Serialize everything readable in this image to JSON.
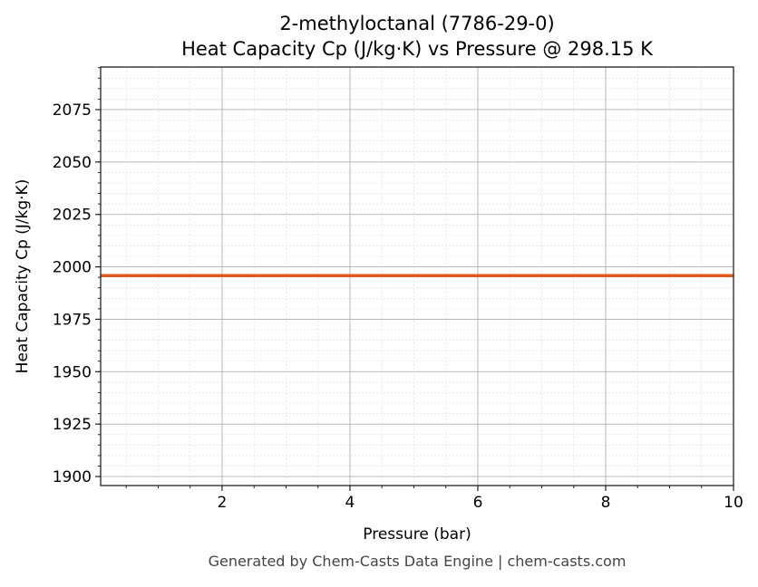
{
  "chart_data": {
    "type": "line",
    "title": "2-methyloctanal (7786-29-0)",
    "subtitle": "Heat Capacity Cp (J/kg·K) vs Pressure @ 298.15 K",
    "xlabel": "Pressure (bar)",
    "ylabel": "Heat Capacity Cp (J/kg·K)",
    "xlim": [
      0.1,
      10
    ],
    "ylim": [
      1895.7,
      2095.3
    ],
    "xticks": [
      2,
      4,
      6,
      8,
      10
    ],
    "yticks": [
      1900,
      1925,
      1950,
      1975,
      2000,
      2025,
      2050,
      2075
    ],
    "x_minor_step": 0.5,
    "y_minor_step": 5,
    "grid": true,
    "series": [
      {
        "x": [
          0.1,
          10
        ],
        "y": [
          1995.8,
          1995.8
        ],
        "color": "#e05a20"
      }
    ],
    "footer": "Generated by Chem-Casts Data Engine | chem-casts.com"
  }
}
